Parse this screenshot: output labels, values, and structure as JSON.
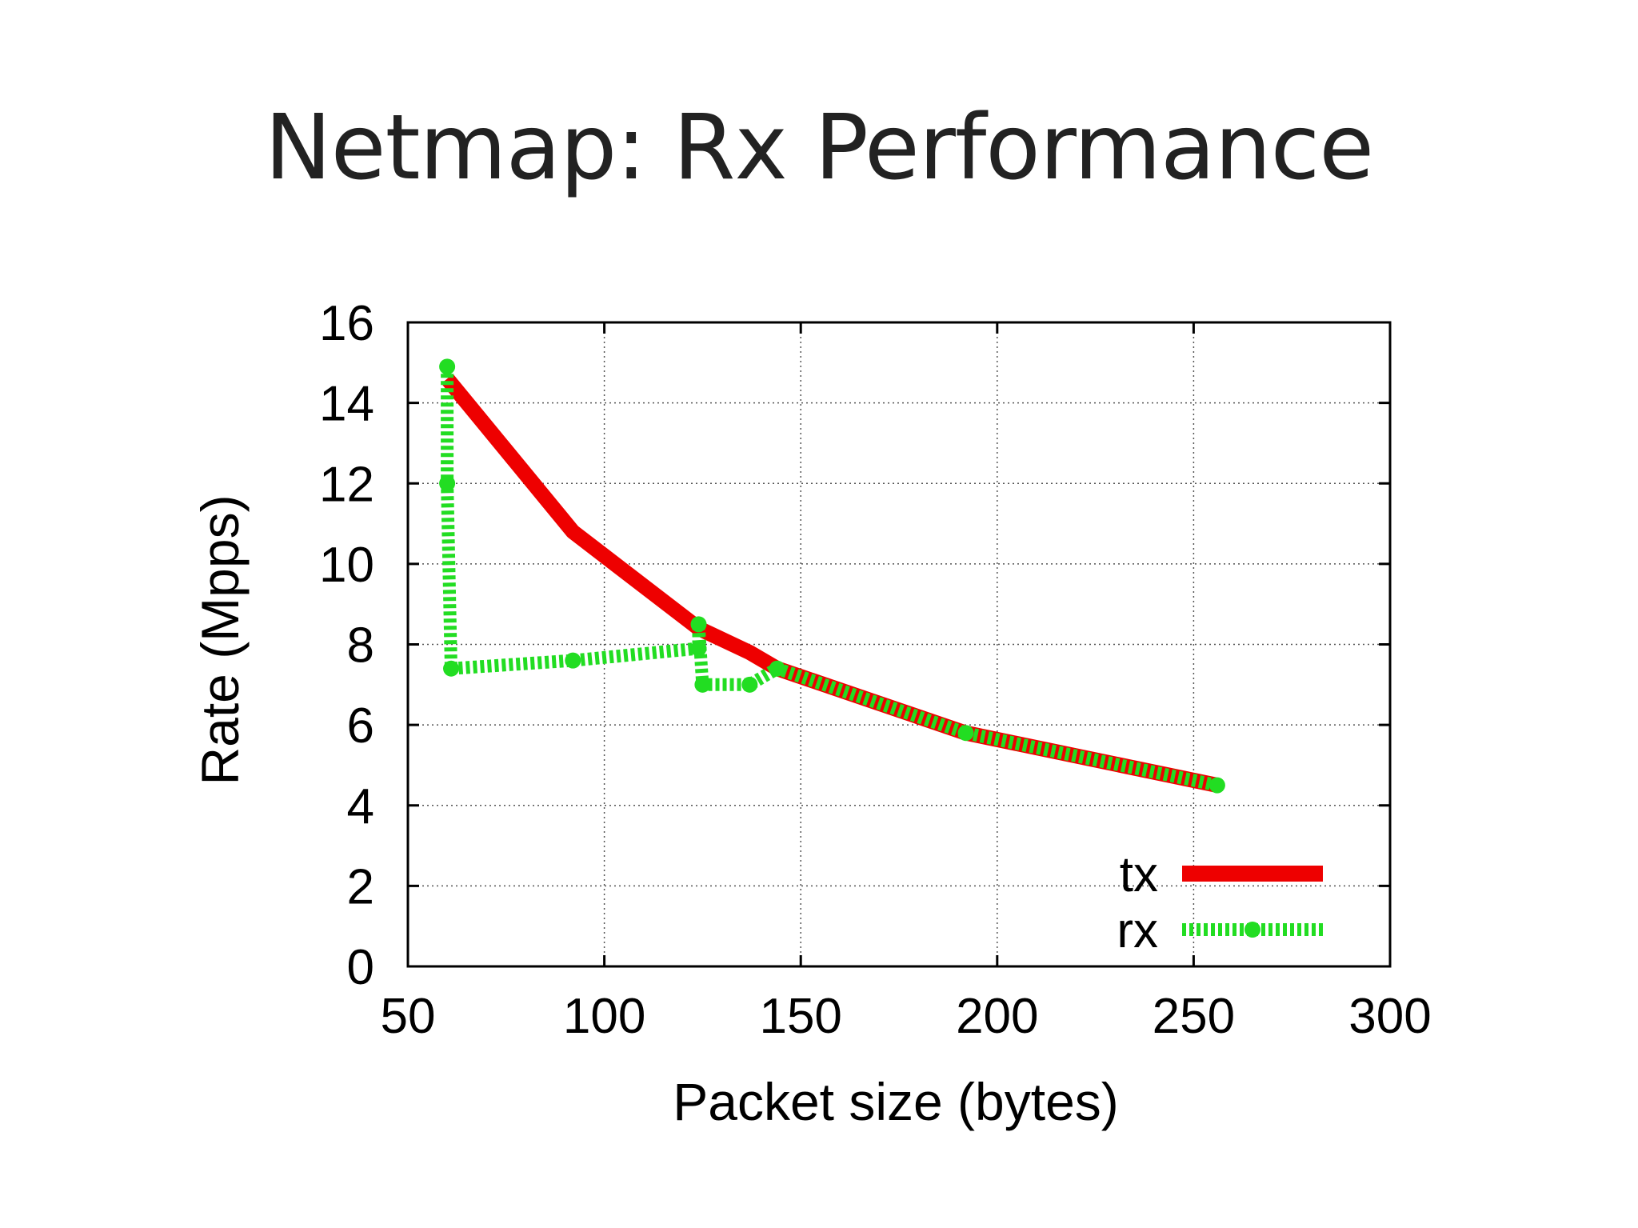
{
  "slide": {
    "title": "Netmap: Rx Performance"
  },
  "chart_data": {
    "type": "line",
    "title": "",
    "xlabel": "Packet size (bytes)",
    "ylabel": "Rate (Mpps)",
    "xlim": [
      50,
      300
    ],
    "ylim": [
      0,
      16
    ],
    "xticks": [
      50,
      100,
      150,
      200,
      250,
      300
    ],
    "yticks": [
      0,
      2,
      4,
      6,
      8,
      10,
      12,
      14,
      16
    ],
    "grid": true,
    "legend_position": "bottom-right",
    "series": [
      {
        "name": "tx",
        "color": "#ee0000",
        "style": "solid",
        "x": [
          60,
          92,
          124,
          137,
          144,
          192,
          256
        ],
        "y": [
          14.6,
          10.8,
          8.4,
          7.8,
          7.4,
          5.8,
          4.5
        ]
      },
      {
        "name": "rx",
        "color": "#22dd22",
        "style": "dotted",
        "x": [
          60,
          60,
          61,
          92,
          124,
          124,
          125,
          137,
          144,
          192,
          256
        ],
        "y": [
          14.9,
          12,
          7.4,
          7.6,
          7.9,
          8.5,
          7.0,
          7.0,
          7.4,
          5.8,
          4.5
        ]
      }
    ]
  }
}
